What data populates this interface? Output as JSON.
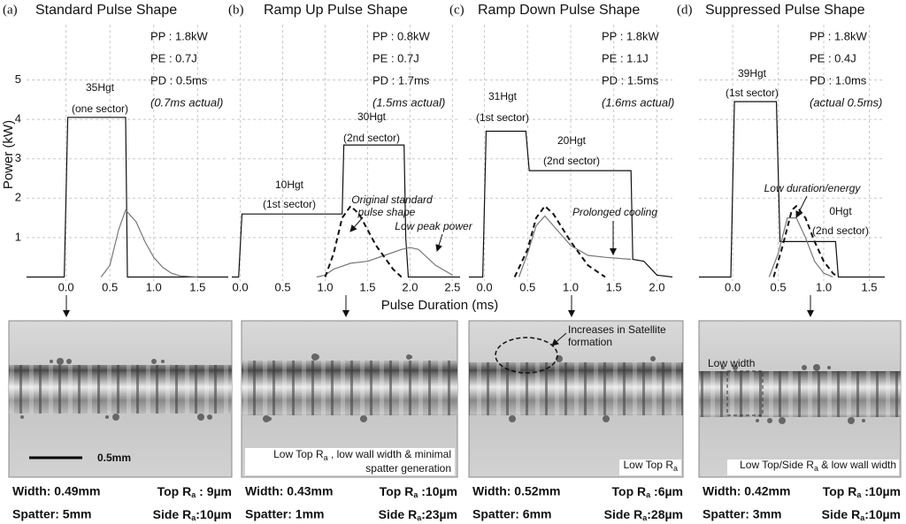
{
  "ylabel": "Power (kW)",
  "xlabel": "Pulse Duration (ms)",
  "chart_data": [
    {
      "type": "line",
      "panel": "(a)",
      "title": "Standard Pulse Shape",
      "xlim": [
        -0.45,
        1.85
      ],
      "ylim": [
        -0.1,
        6.4
      ],
      "xticks": [
        {
          "value": 0,
          "label": "0.0"
        },
        0.5,
        {
          "value": 1,
          "label": "1.0"
        },
        1.5
      ],
      "yticks": [
        1,
        2,
        3,
        4,
        5
      ],
      "ytick_labels": true,
      "grid": true,
      "params": [
        "PP : 1.8kW",
        "PE : 0.7J",
        "PD : 0.5ms",
        "(0.7ms actual)"
      ],
      "annotations": [
        "35Hgt",
        "(one sector)"
      ],
      "series": [
        {
          "color": "#111111",
          "dash": false,
          "x": [
            -0.45,
            -0.02,
            0.02,
            0.3,
            0.68,
            0.7,
            0.75,
            1.85
          ],
          "values": [
            0,
            0,
            4.05,
            4.05,
            4.05,
            0,
            0,
            0
          ]
        },
        {
          "color": "#777777",
          "dash": false,
          "x": [
            0.4,
            0.5,
            0.6,
            0.68,
            0.8,
            0.9,
            1.0,
            1.1,
            1.2,
            1.3,
            1.5
          ],
          "values": [
            0,
            0.3,
            1.2,
            1.7,
            1.4,
            0.9,
            0.5,
            0.25,
            0.1,
            0.03,
            0
          ]
        }
      ]
    },
    {
      "type": "line",
      "panel": "(b)",
      "title": "Ramp Up Pulse Shape",
      "xlim": [
        -0.1,
        2.59
      ],
      "ylim": [
        -0.1,
        6.4
      ],
      "xticks": [
        {
          "value": 0,
          "label": "0.0"
        },
        0.5,
        {
          "value": 1,
          "label": "1.0"
        },
        1.5,
        {
          "value": 2,
          "label": "2.0"
        },
        2.5
      ],
      "yticks": [
        1,
        2,
        3,
        4,
        5
      ],
      "ytick_labels": false,
      "grid": true,
      "params": [
        "PP : 0.8kW",
        "PE : 0.7J",
        "PD : 1.7ms",
        "(1.5ms actual)"
      ],
      "annotations": [
        "10Hgt",
        "(1st sector)",
        "30Hgt",
        "(2nd sector)",
        "Original standard",
        "pulse shape",
        "Low peak power"
      ],
      "series": [
        {
          "color": "#111111",
          "dash": false,
          "x": [
            -0.1,
            -0.02,
            0.02,
            1.18,
            1.2,
            1.22,
            1.93,
            1.95,
            1.98,
            2.59
          ],
          "values": [
            0,
            0,
            1.6,
            1.6,
            1.6,
            3.35,
            3.35,
            1.0,
            0,
            0
          ]
        },
        {
          "color": "#777777",
          "dash": false,
          "x": [
            0.9,
            1.0,
            1.1,
            1.3,
            1.5,
            1.7,
            1.9,
            2.0,
            2.1,
            2.3,
            2.5
          ],
          "values": [
            0,
            0.05,
            0.2,
            0.35,
            0.4,
            0.55,
            0.7,
            0.75,
            0.7,
            0.3,
            0.05
          ]
        },
        {
          "color": "#111111",
          "dash": true,
          "x": [
            1.0,
            1.1,
            1.2,
            1.3,
            1.4,
            1.6,
            1.8,
            1.9
          ],
          "values": [
            0,
            0.6,
            1.5,
            1.8,
            1.6,
            0.8,
            0.2,
            0
          ]
        }
      ]
    },
    {
      "type": "line",
      "panel": "(c)",
      "title": "Ramp Down Pulse Shape",
      "xlim": [
        -0.18,
        2.18
      ],
      "ylim": [
        -0.1,
        6.4
      ],
      "xticks": [
        {
          "value": 0,
          "label": "0.0"
        },
        0.5,
        {
          "value": 1,
          "label": "1.0"
        },
        1.5,
        {
          "value": 2,
          "label": "2.0"
        }
      ],
      "yticks": [
        1,
        2,
        3,
        4,
        5
      ],
      "ytick_labels": false,
      "grid": true,
      "params": [
        "PP : 1.8kW",
        "PE : 1.1J",
        "PD : 1.5ms",
        "(1.6ms actual)"
      ],
      "annotations": [
        "31Hgt",
        "(1st sector)",
        "20Hgt",
        "(2nd sector)",
        "Prolonged cooling"
      ],
      "series": [
        {
          "color": "#111111",
          "dash": false,
          "x": [
            -0.18,
            -0.02,
            0.02,
            0.48,
            0.52,
            1.7,
            1.72,
            1.85,
            2.0,
            2.18
          ],
          "values": [
            0,
            0,
            3.7,
            3.7,
            2.7,
            2.7,
            0.45,
            0.4,
            0.05,
            0
          ]
        },
        {
          "color": "#777777",
          "dash": false,
          "x": [
            0.4,
            0.5,
            0.6,
            0.7,
            0.8,
            1.0,
            1.2,
            1.4,
            1.7
          ],
          "values": [
            0,
            0.6,
            1.3,
            1.55,
            1.3,
            0.8,
            0.55,
            0.5,
            0.45
          ]
        },
        {
          "color": "#111111",
          "dash": true,
          "x": [
            0.35,
            0.5,
            0.6,
            0.7,
            0.8,
            1.0,
            1.2,
            1.4
          ],
          "values": [
            0,
            0.7,
            1.5,
            1.8,
            1.6,
            0.9,
            0.3,
            0
          ]
        }
      ]
    },
    {
      "type": "line",
      "panel": "(d)",
      "title": "Suppressed Pulse Shape",
      "xlim": [
        -0.37,
        1.67
      ],
      "ylim": [
        -0.1,
        6.4
      ],
      "xticks": [
        {
          "value": 0,
          "label": "0.0"
        },
        0.5,
        {
          "value": 1,
          "label": "1.0"
        },
        1.5
      ],
      "yticks": [
        1,
        2,
        3,
        4,
        5
      ],
      "ytick_labels": false,
      "grid": true,
      "params": [
        "PP : 1.8kW",
        "PE : 0.4J",
        "PD : 1.0ms",
        "(actual 0.5ms)"
      ],
      "annotations": [
        "39Hgt",
        "(1st sector)",
        "Low duration/energy",
        "0Hgt",
        "(2nd sector)"
      ],
      "series": [
        {
          "color": "#111111",
          "dash": false,
          "x": [
            -0.37,
            -0.02,
            0.02,
            0.48,
            0.52,
            1.13,
            1.16,
            1.67
          ],
          "values": [
            0,
            0,
            4.45,
            4.45,
            0.9,
            0.9,
            0,
            0
          ]
        },
        {
          "color": "#777777",
          "dash": false,
          "x": [
            0.4,
            0.5,
            0.6,
            0.7,
            0.8,
            0.9,
            1.0,
            1.1
          ],
          "values": [
            0,
            0.6,
            1.5,
            1.5,
            1.0,
            0.4,
            0.1,
            0
          ]
        },
        {
          "color": "#111111",
          "dash": true,
          "x": [
            0.45,
            0.55,
            0.65,
            0.7,
            0.8,
            0.9,
            1.0,
            1.1,
            1.15
          ],
          "values": [
            0,
            0.8,
            1.7,
            1.8,
            1.5,
            0.9,
            0.4,
            0.1,
            0
          ]
        }
      ]
    }
  ],
  "micrographs": [
    {
      "annotations": [
        "0.5mm"
      ],
      "measurements": [
        {
          "text": "Width: 0.49mm"
        },
        {
          "before": "Top R",
          "sub": "a",
          "after": " :  9µm"
        },
        {
          "text": "Spatter: 5mm"
        },
        {
          "before": "Side R",
          "sub": "a",
          "after": ":10µm"
        }
      ]
    },
    {
      "annotations": [
        {
          "before": "Low Top R",
          "sub": "a",
          "after": " , low wall width & minimal"
        },
        {
          "text": "spatter generation"
        }
      ],
      "measurements": [
        {
          "text": "Width: 0.43mm"
        },
        {
          "before": "Top R",
          "sub": "a",
          "after": " :10µm"
        },
        {
          "text": "Spatter: 1mm"
        },
        {
          "before": "Side R",
          "sub": "a",
          "after": ":23µm"
        }
      ]
    },
    {
      "annotations": [
        {
          "text": "Increases in Satellite"
        },
        {
          "text": "formation"
        },
        {
          "before": "Low Top R",
          "sub": "a"
        }
      ],
      "measurements": [
        {
          "text": "Width: 0.52mm"
        },
        {
          "before": "Top R",
          "sub": "a",
          "after": " :6µm"
        },
        {
          "text": "Spatter: 6mm"
        },
        {
          "before": "Side R",
          "sub": "a",
          "after": ":28µm"
        }
      ]
    },
    {
      "annotations": [
        {
          "text": "Low width"
        },
        {
          "before": "Low Top/Side R",
          "sub": "a",
          "after": " & low wall width"
        }
      ],
      "measurements": [
        {
          "text": "Width: 0.42mm"
        },
        {
          "before": "Top R",
          "sub": "a",
          "after": " :10µm"
        },
        {
          "text": "Spatter: 3mm"
        },
        {
          "before": "Side R",
          "sub": "a",
          "after": ":10µm"
        }
      ]
    }
  ]
}
